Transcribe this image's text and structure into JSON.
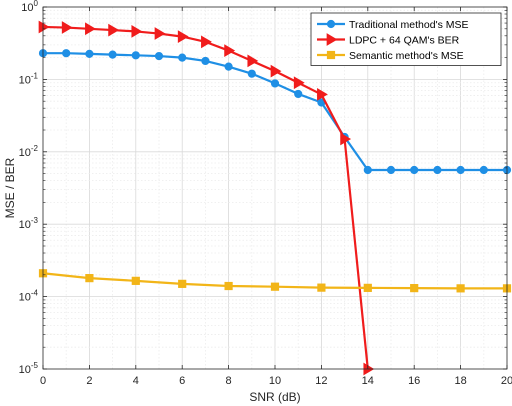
{
  "chart_data": {
    "type": "line",
    "xlabel": "SNR (dB)",
    "ylabel": "MSE / BER",
    "xlim": [
      0,
      20
    ],
    "ylim": [
      1e-05,
      1
    ],
    "yscale": "log",
    "grid": true,
    "minor_grid": true,
    "legend_position": "top-right",
    "x_ticks": [
      "0",
      "2",
      "4",
      "6",
      "8",
      "10",
      "12",
      "14",
      "16",
      "18",
      "20"
    ],
    "y_ticks": [
      {
        "base": "10",
        "exp": "-5"
      },
      {
        "base": "10",
        "exp": "-4"
      },
      {
        "base": "10",
        "exp": "-3"
      },
      {
        "base": "10",
        "exp": "-2"
      },
      {
        "base": "10",
        "exp": "-1"
      },
      {
        "base": "10",
        "exp": "0"
      }
    ],
    "series": [
      {
        "name": "Traditional method's MSE",
        "color": "#1f8fe5",
        "marker": "circle",
        "x": [
          0,
          1,
          2,
          3,
          4,
          5,
          6,
          7,
          8,
          9,
          10,
          11,
          12,
          13,
          14,
          15,
          16,
          17,
          18,
          19,
          20
        ],
        "y": [
          0.23,
          0.23,
          0.225,
          0.22,
          0.215,
          0.21,
          0.2,
          0.18,
          0.15,
          0.12,
          0.088,
          0.063,
          0.048,
          0.016,
          0.0056,
          0.0056,
          0.0056,
          0.0056,
          0.0056,
          0.0056,
          0.0056
        ]
      },
      {
        "name": "LDPC + 64 QAM's BER",
        "color": "#f01c1c",
        "marker": "triangle-right",
        "x": [
          0,
          1,
          2,
          3,
          4,
          5,
          6,
          7,
          8,
          9,
          10,
          11,
          12,
          13,
          14
        ],
        "y": [
          0.53,
          0.52,
          0.5,
          0.48,
          0.46,
          0.43,
          0.39,
          0.33,
          0.25,
          0.18,
          0.13,
          0.09,
          0.062,
          0.015,
          1e-05
        ]
      },
      {
        "name": "Semantic method's MSE",
        "color": "#f2b518",
        "marker": "square",
        "x": [
          0,
          2,
          4,
          6,
          8,
          10,
          12,
          14,
          16,
          18,
          20
        ],
        "y": [
          0.00021,
          0.00018,
          0.000165,
          0.00015,
          0.00014,
          0.000137,
          0.000133,
          0.000132,
          0.000131,
          0.00013,
          0.00013
        ]
      }
    ]
  }
}
